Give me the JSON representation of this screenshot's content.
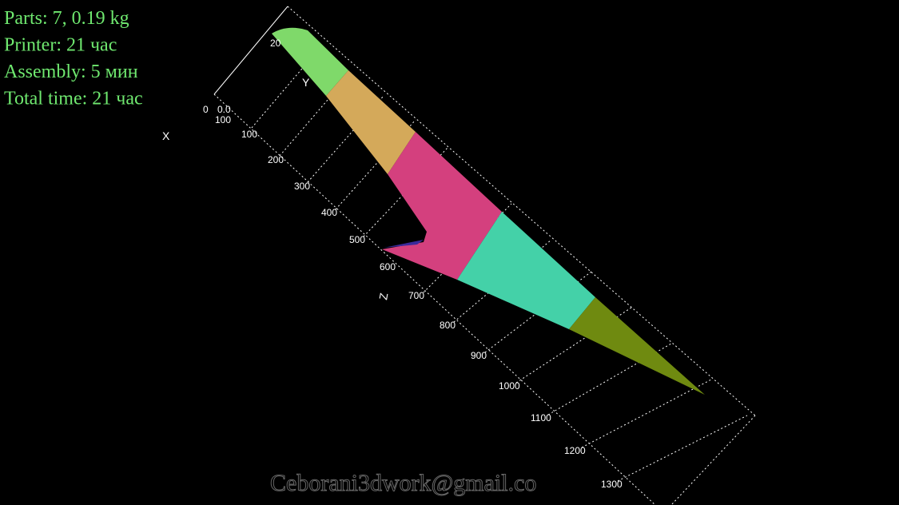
{
  "info": [
    "Parts: 7, 0.19 kg",
    "Printer: 21 час",
    "Assembly: 5 мин",
    "Total time: 21 час"
  ],
  "axes": {
    "x": "X",
    "y": "Y",
    "z": "Z"
  },
  "ticks": [
    "20",
    "0",
    "0.0",
    "100",
    "100",
    "200",
    "300",
    "400",
    "500",
    "600",
    "700",
    "800",
    "900",
    "1000",
    "1100",
    "1200",
    "1300"
  ],
  "watermark": "Ceborani3dwork@gmail.co"
}
